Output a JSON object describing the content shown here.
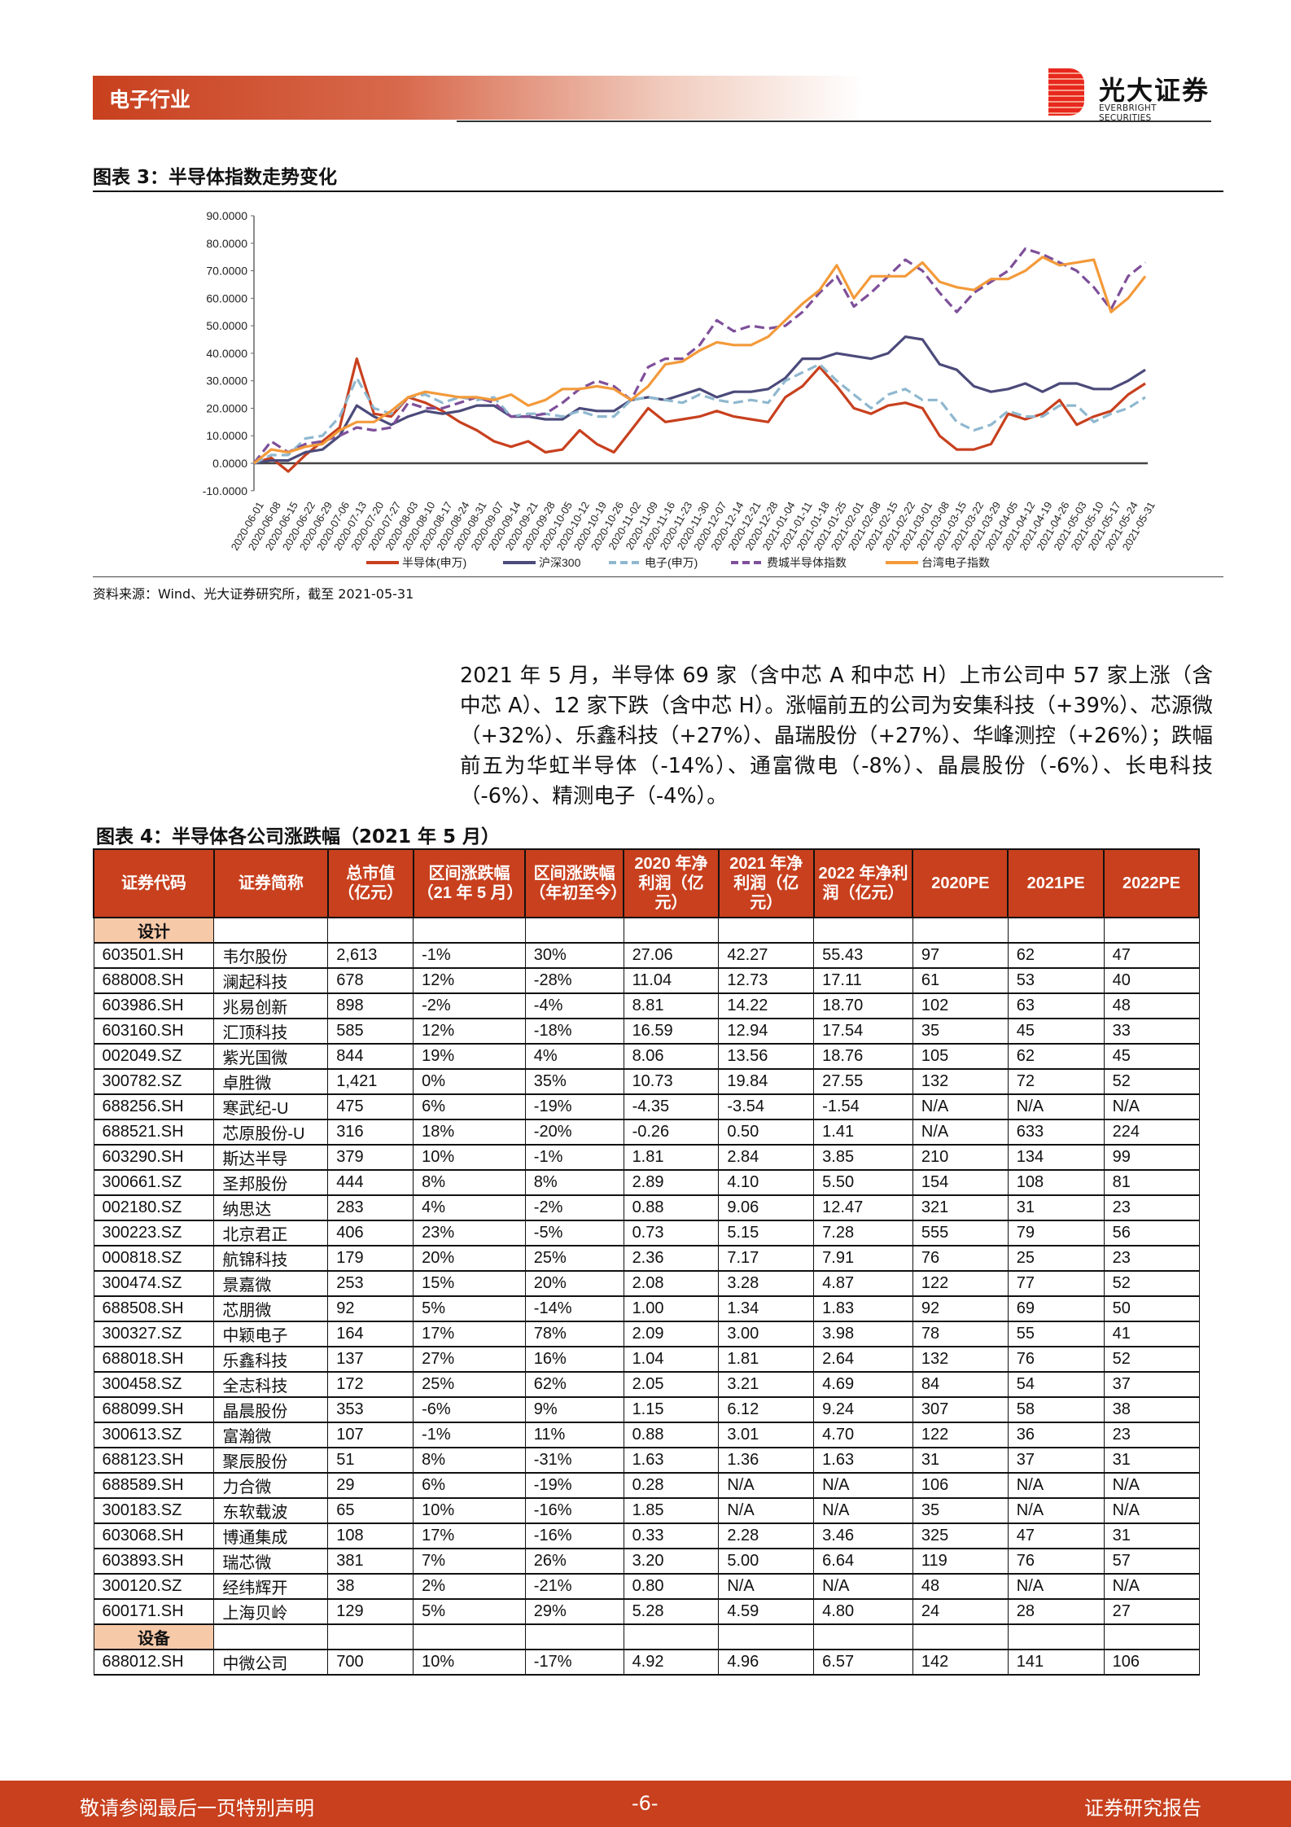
{
  "header": {
    "section": "电子行业",
    "logo_cn": "光大证券",
    "logo_en": "EVERBRIGHT SECURITIES"
  },
  "figure3": {
    "title": "图表 3：半导体指数走势变化",
    "source": "资料来源：Wind、光大证券研究所，截至 2021-05-31"
  },
  "chart_data": {
    "type": "line",
    "title": "",
    "ylim": [
      -10,
      90
    ],
    "yticks": [
      "90.0000",
      "80.0000",
      "70.0000",
      "60.0000",
      "50.0000",
      "40.0000",
      "30.0000",
      "20.0000",
      "10.0000",
      "0.0000",
      "-10.0000"
    ],
    "x": [
      "2020-06-01",
      "2020-06-08",
      "2020-06-15",
      "2020-06-22",
      "2020-06-29",
      "2020-07-06",
      "2020-07-13",
      "2020-07-20",
      "2020-07-27",
      "2020-08-03",
      "2020-08-10",
      "2020-08-17",
      "2020-08-24",
      "2020-08-31",
      "2020-09-07",
      "2020-09-14",
      "2020-09-21",
      "2020-09-28",
      "2020-10-05",
      "2020-10-12",
      "2020-10-19",
      "2020-10-26",
      "2020-11-02",
      "2020-11-09",
      "2020-11-16",
      "2020-11-23",
      "2020-11-30",
      "2020-12-07",
      "2020-12-14",
      "2020-12-21",
      "2020-12-28",
      "2021-01-04",
      "2021-01-11",
      "2021-01-18",
      "2021-01-25",
      "2021-02-01",
      "2021-02-08",
      "2021-02-15",
      "2021-02-22",
      "2021-03-01",
      "2021-03-08",
      "2021-03-15",
      "2021-03-22",
      "2021-03-29",
      "2021-04-05",
      "2021-04-12",
      "2021-04-19",
      "2021-04-26",
      "2021-05-03",
      "2021-05-10",
      "2021-05-17",
      "2021-05-24",
      "2021-05-31"
    ],
    "legend": "bottom",
    "grid": false,
    "series": [
      {
        "name": "半导体(申万)",
        "color": "#c8401e",
        "dash": false,
        "values": [
          0,
          2,
          -3,
          3,
          8,
          13,
          38,
          18,
          17,
          24,
          22,
          19,
          15,
          12,
          8,
          6,
          8,
          4,
          5,
          12,
          7,
          4,
          12,
          20,
          15,
          16,
          17,
          19,
          17,
          16,
          15,
          24,
          28,
          35,
          28,
          20,
          18,
          21,
          22,
          20,
          10,
          5,
          5,
          7,
          18,
          16,
          18,
          23,
          14,
          17,
          19,
          25,
          29
        ]
      },
      {
        "name": "沪深300",
        "color": "#4b4a7a",
        "dash": false,
        "values": [
          0,
          1,
          1,
          4,
          5,
          10,
          21,
          17,
          14,
          17,
          19,
          18,
          19,
          21,
          21,
          17,
          17,
          16,
          16,
          20,
          19,
          19,
          23,
          24,
          23,
          25,
          27,
          24,
          26,
          26,
          27,
          31,
          38,
          38,
          40,
          39,
          38,
          40,
          46,
          45,
          36,
          34,
          28,
          26,
          27,
          29,
          26,
          29,
          29,
          27,
          27,
          30,
          34
        ]
      },
      {
        "name": "电子(申万)",
        "color": "#8fb8cf",
        "dash": true,
        "values": [
          0,
          3,
          3,
          9,
          10,
          17,
          31,
          20,
          18,
          24,
          25,
          22,
          24,
          23,
          24,
          17,
          18,
          18,
          17,
          19,
          17,
          17,
          23,
          24,
          23,
          22,
          25,
          23,
          22,
          23,
          22,
          30,
          33,
          36,
          30,
          25,
          20,
          25,
          27,
          23,
          23,
          15,
          12,
          14,
          19,
          17,
          17,
          21,
          21,
          15,
          18,
          20,
          24
        ]
      },
      {
        "name": "费城半导体指数",
        "color": "#7e4f9a",
        "dash": true,
        "values": [
          0,
          8,
          4,
          7,
          8,
          10,
          13,
          12,
          13,
          22,
          20,
          20,
          22,
          24,
          22,
          17,
          17,
          18,
          22,
          27,
          30,
          28,
          23,
          35,
          38,
          38,
          43,
          52,
          48,
          50,
          49,
          50,
          55,
          62,
          68,
          57,
          62,
          68,
          74,
          70,
          62,
          55,
          62,
          66,
          70,
          78,
          76,
          73,
          70,
          64,
          56,
          68,
          73
        ]
      },
      {
        "name": "台湾电子指数",
        "color": "#f39a3a",
        "dash": false,
        "values": [
          0,
          5,
          4,
          6,
          7,
          12,
          15,
          15,
          19,
          24,
          26,
          25,
          24,
          24,
          23,
          25,
          21,
          23,
          27,
          27,
          28,
          27,
          23,
          28,
          36,
          37,
          41,
          44,
          43,
          43,
          46,
          52,
          58,
          63,
          72,
          60,
          68,
          68,
          68,
          73,
          66,
          64,
          63,
          67,
          67,
          70,
          75,
          72,
          73,
          74,
          55,
          60,
          68
        ]
      }
    ]
  },
  "paragraph": "2021 年 5 月，半导体 69 家（含中芯 A 和中芯 H）上市公司中 57 家上涨（含中芯 A）、12 家下跌（含中芯 H）。涨幅前五的公司为安集科技（+39%）、芯源微（+32%）、乐鑫科技（+27%）、晶瑞股份（+27%）、华峰测控（+26%）；跌幅前五为华虹半导体（-14%）、通富微电（-8%）、晶晨股份（-6%）、长电科技（-6%）、精测电子（-4%）。",
  "figure4": {
    "title": "图表 4：半导体各公司涨跌幅（2021 年 5 月）",
    "headers": [
      "证券代码",
      "证券简称",
      "总市值（亿元）",
      "区间涨跌幅（21 年 5 月）",
      "区间涨跌幅（年初至今）",
      "2020 年净利润（亿元）",
      "2021 年净利润（亿元）",
      "2022 年净利润（亿元）",
      "2020PE",
      "2021PE",
      "2022PE"
    ],
    "sections": [
      {
        "label": "设计",
        "rows": [
          [
            "603501.SH",
            "韦尔股份",
            "2,613",
            "-1%",
            "30%",
            "27.06",
            "42.27",
            "55.43",
            "97",
            "62",
            "47"
          ],
          [
            "688008.SH",
            "澜起科技",
            "678",
            "12%",
            "-28%",
            "11.04",
            "12.73",
            "17.11",
            "61",
            "53",
            "40"
          ],
          [
            "603986.SH",
            "兆易创新",
            "898",
            "-2%",
            "-4%",
            "8.81",
            "14.22",
            "18.70",
            "102",
            "63",
            "48"
          ],
          [
            "603160.SH",
            "汇顶科技",
            "585",
            "12%",
            "-18%",
            "16.59",
            "12.94",
            "17.54",
            "35",
            "45",
            "33"
          ],
          [
            "002049.SZ",
            "紫光国微",
            "844",
            "19%",
            "4%",
            "8.06",
            "13.56",
            "18.76",
            "105",
            "62",
            "45"
          ],
          [
            "300782.SZ",
            "卓胜微",
            "1,421",
            "0%",
            "35%",
            "10.73",
            "19.84",
            "27.55",
            "132",
            "72",
            "52"
          ],
          [
            "688256.SH",
            "寒武纪-U",
            "475",
            "6%",
            "-19%",
            "-4.35",
            "-3.54",
            "-1.54",
            "N/A",
            "N/A",
            "N/A"
          ],
          [
            "688521.SH",
            "芯原股份-U",
            "316",
            "18%",
            "-20%",
            "-0.26",
            "0.50",
            "1.41",
            "N/A",
            "633",
            "224"
          ],
          [
            "603290.SH",
            "斯达半导",
            "379",
            "10%",
            "-1%",
            "1.81",
            "2.84",
            "3.85",
            "210",
            "134",
            "99"
          ],
          [
            "300661.SZ",
            "圣邦股份",
            "444",
            "8%",
            "8%",
            "2.89",
            "4.10",
            "5.50",
            "154",
            "108",
            "81"
          ],
          [
            "002180.SZ",
            "纳思达",
            "283",
            "4%",
            "-2%",
            "0.88",
            "9.06",
            "12.47",
            "321",
            "31",
            "23"
          ],
          [
            "300223.SZ",
            "北京君正",
            "406",
            "23%",
            "-5%",
            "0.73",
            "5.15",
            "7.28",
            "555",
            "79",
            "56"
          ],
          [
            "000818.SZ",
            "航锦科技",
            "179",
            "20%",
            "25%",
            "2.36",
            "7.17",
            "7.91",
            "76",
            "25",
            "23"
          ],
          [
            "300474.SZ",
            "景嘉微",
            "253",
            "15%",
            "20%",
            "2.08",
            "3.28",
            "4.87",
            "122",
            "77",
            "52"
          ],
          [
            "688508.SH",
            "芯朋微",
            "92",
            "5%",
            "-14%",
            "1.00",
            "1.34",
            "1.83",
            "92",
            "69",
            "50"
          ],
          [
            "300327.SZ",
            "中颖电子",
            "164",
            "17%",
            "78%",
            "2.09",
            "3.00",
            "3.98",
            "78",
            "55",
            "41"
          ],
          [
            "688018.SH",
            "乐鑫科技",
            "137",
            "27%",
            "16%",
            "1.04",
            "1.81",
            "2.64",
            "132",
            "76",
            "52"
          ],
          [
            "300458.SZ",
            "全志科技",
            "172",
            "25%",
            "62%",
            "2.05",
            "3.21",
            "4.69",
            "84",
            "54",
            "37"
          ],
          [
            "688099.SH",
            "晶晨股份",
            "353",
            "-6%",
            "9%",
            "1.15",
            "6.12",
            "9.24",
            "307",
            "58",
            "38"
          ],
          [
            "300613.SZ",
            "富瀚微",
            "107",
            "-1%",
            "11%",
            "0.88",
            "3.01",
            "4.70",
            "122",
            "36",
            "23"
          ],
          [
            "688123.SH",
            "聚辰股份",
            "51",
            "8%",
            "-31%",
            "1.63",
            "1.36",
            "1.63",
            "31",
            "37",
            "31"
          ],
          [
            "688589.SH",
            "力合微",
            "29",
            "6%",
            "-19%",
            "0.28",
            "N/A",
            "N/A",
            "106",
            "N/A",
            "N/A"
          ],
          [
            "300183.SZ",
            "东软载波",
            "65",
            "10%",
            "-16%",
            "1.85",
            "N/A",
            "N/A",
            "35",
            "N/A",
            "N/A"
          ],
          [
            "603068.SH",
            "博通集成",
            "108",
            "17%",
            "-16%",
            "0.33",
            "2.28",
            "3.46",
            "325",
            "47",
            "31"
          ],
          [
            "603893.SH",
            "瑞芯微",
            "381",
            "7%",
            "26%",
            "3.20",
            "5.00",
            "6.64",
            "119",
            "76",
            "57"
          ],
          [
            "300120.SZ",
            "经纬辉开",
            "38",
            "2%",
            "-21%",
            "0.80",
            "N/A",
            "N/A",
            "48",
            "N/A",
            "N/A"
          ],
          [
            "600171.SH",
            "上海贝岭",
            "129",
            "5%",
            "29%",
            "5.28",
            "4.59",
            "4.80",
            "24",
            "28",
            "27"
          ]
        ]
      },
      {
        "label": "设备",
        "rows": [
          [
            "688012.SH",
            "中微公司",
            "700",
            "10%",
            "-17%",
            "4.92",
            "4.96",
            "6.57",
            "142",
            "141",
            "106"
          ]
        ]
      }
    ]
  },
  "footer": {
    "left": "敬请参阅最后一页特别声明",
    "page": "-6-",
    "right": "证券研究报告"
  }
}
